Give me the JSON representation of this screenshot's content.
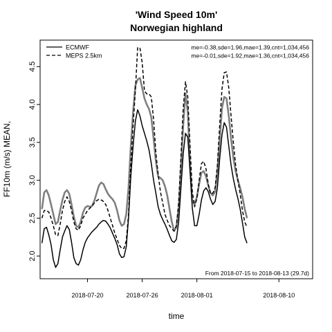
{
  "chart_data": {
    "type": "line",
    "title": "'Wind Speed 10m'",
    "subtitle": "Norwegian highland",
    "xlabel": "time",
    "ylabel": "FF10m (m/s) MEAN,",
    "x_tick_labels": [
      "2018-07-20",
      "2018-07-26",
      "2018-08-01",
      "2018-08-10"
    ],
    "x_tick_days": [
      5,
      11,
      17,
      26
    ],
    "xlim": [
      -0.2,
      29.7
    ],
    "ylim": [
      1.7,
      4.85
    ],
    "y_ticks": [
      2.0,
      2.5,
      3.0,
      3.5,
      4.0,
      4.5
    ],
    "y_tick_labels": [
      "2.0",
      "2.5",
      "3.0",
      "3.5",
      "4.0",
      "4.5"
    ],
    "legend_position": "top-left",
    "stats": [
      "me=-0.38,sde=1.96,mae=1.39,cnt=1,034,456",
      "me=-0.01,sde=1.92,mae=1.36,cnt=1,034,456"
    ],
    "footnote": "From 2018-07-15 to 2018-08-13 (29.7d)",
    "series": [
      {
        "name": "ECMWF",
        "style": "solid",
        "color": "#000000",
        "points": [
          [
            0.0,
            2.17
          ],
          [
            0.25,
            2.36
          ],
          [
            0.5,
            2.38
          ],
          [
            0.75,
            2.28
          ],
          [
            1.0,
            2.15
          ],
          [
            1.25,
            1.95
          ],
          [
            1.5,
            1.85
          ],
          [
            1.75,
            1.9
          ],
          [
            2.0,
            2.08
          ],
          [
            2.25,
            2.25
          ],
          [
            2.5,
            2.33
          ],
          [
            2.75,
            2.4
          ],
          [
            3.0,
            2.35
          ],
          [
            3.25,
            2.18
          ],
          [
            3.5,
            1.98
          ],
          [
            3.75,
            1.9
          ],
          [
            4.0,
            1.88
          ],
          [
            4.25,
            1.95
          ],
          [
            4.5,
            2.08
          ],
          [
            4.75,
            2.18
          ],
          [
            5.0,
            2.24
          ],
          [
            5.25,
            2.28
          ],
          [
            5.5,
            2.32
          ],
          [
            5.75,
            2.35
          ],
          [
            6.0,
            2.38
          ],
          [
            6.25,
            2.42
          ],
          [
            6.5,
            2.45
          ],
          [
            6.75,
            2.47
          ],
          [
            7.0,
            2.46
          ],
          [
            7.25,
            2.42
          ],
          [
            7.5,
            2.37
          ],
          [
            7.75,
            2.3
          ],
          [
            8.0,
            2.23
          ],
          [
            8.25,
            2.15
          ],
          [
            8.5,
            2.03
          ],
          [
            8.75,
            1.98
          ],
          [
            9.0,
            1.99
          ],
          [
            9.25,
            2.12
          ],
          [
            9.5,
            2.5
          ],
          [
            9.75,
            3.05
          ],
          [
            10.0,
            3.45
          ],
          [
            10.25,
            3.78
          ],
          [
            10.5,
            3.93
          ],
          [
            10.75,
            3.85
          ],
          [
            11.0,
            3.72
          ],
          [
            11.25,
            3.62
          ],
          [
            11.5,
            3.52
          ],
          [
            11.75,
            3.4
          ],
          [
            12.0,
            3.22
          ],
          [
            12.25,
            3.0
          ],
          [
            12.5,
            2.83
          ],
          [
            12.75,
            2.65
          ],
          [
            13.0,
            2.55
          ],
          [
            13.25,
            2.48
          ],
          [
            13.5,
            2.42
          ],
          [
            13.75,
            2.35
          ],
          [
            14.0,
            2.27
          ],
          [
            14.25,
            2.2
          ],
          [
            14.5,
            2.18
          ],
          [
            14.75,
            2.22
          ],
          [
            15.0,
            2.45
          ],
          [
            15.25,
            2.9
          ],
          [
            15.5,
            3.35
          ],
          [
            15.75,
            3.62
          ],
          [
            16.0,
            3.57
          ],
          [
            16.25,
            3.12
          ],
          [
            16.5,
            2.63
          ],
          [
            16.75,
            2.4
          ],
          [
            17.0,
            2.4
          ],
          [
            17.25,
            2.55
          ],
          [
            17.5,
            2.74
          ],
          [
            17.75,
            2.86
          ],
          [
            18.0,
            2.9
          ],
          [
            18.25,
            2.85
          ],
          [
            18.5,
            2.75
          ],
          [
            18.75,
            2.68
          ],
          [
            19.0,
            2.72
          ],
          [
            19.25,
            2.9
          ],
          [
            19.5,
            3.28
          ],
          [
            19.75,
            3.6
          ],
          [
            20.0,
            3.76
          ],
          [
            20.25,
            3.7
          ],
          [
            20.5,
            3.45
          ],
          [
            20.75,
            3.2
          ],
          [
            21.0,
            3.02
          ],
          [
            21.25,
            2.88
          ],
          [
            21.5,
            2.76
          ],
          [
            21.75,
            2.62
          ],
          [
            22.0,
            2.44
          ],
          [
            22.25,
            2.25
          ],
          [
            22.5,
            2.17
          ]
        ]
      },
      {
        "name": "MEPS 2.5km",
        "style": "dashed",
        "color": "#000000",
        "points": [
          [
            0.0,
            2.5
          ],
          [
            0.25,
            2.6
          ],
          [
            0.5,
            2.6
          ],
          [
            0.75,
            2.58
          ],
          [
            1.0,
            2.5
          ],
          [
            1.25,
            2.4
          ],
          [
            1.5,
            2.28
          ],
          [
            1.75,
            2.27
          ],
          [
            2.0,
            2.42
          ],
          [
            2.25,
            2.6
          ],
          [
            2.5,
            2.72
          ],
          [
            2.75,
            2.78
          ],
          [
            3.0,
            2.72
          ],
          [
            3.25,
            2.6
          ],
          [
            3.5,
            2.45
          ],
          [
            3.75,
            2.36
          ],
          [
            4.0,
            2.34
          ],
          [
            4.25,
            2.4
          ],
          [
            4.5,
            2.5
          ],
          [
            4.75,
            2.55
          ],
          [
            5.0,
            2.6
          ],
          [
            5.25,
            2.63
          ],
          [
            5.5,
            2.66
          ],
          [
            5.75,
            2.7
          ],
          [
            6.0,
            2.73
          ],
          [
            6.25,
            2.75
          ],
          [
            6.5,
            2.74
          ],
          [
            6.75,
            2.72
          ],
          [
            7.0,
            2.68
          ],
          [
            7.25,
            2.6
          ],
          [
            7.5,
            2.5
          ],
          [
            7.75,
            2.4
          ],
          [
            8.0,
            2.3
          ],
          [
            8.25,
            2.22
          ],
          [
            8.5,
            2.14
          ],
          [
            8.75,
            2.1
          ],
          [
            9.0,
            2.1
          ],
          [
            9.25,
            2.2
          ],
          [
            9.5,
            2.55
          ],
          [
            9.75,
            3.2
          ],
          [
            10.0,
            3.72
          ],
          [
            10.25,
            4.18
          ],
          [
            10.5,
            4.75
          ],
          [
            10.75,
            4.75
          ],
          [
            11.0,
            4.55
          ],
          [
            11.25,
            4.18
          ],
          [
            11.5,
            4.14
          ],
          [
            11.75,
            4.14
          ],
          [
            12.0,
            4.1
          ],
          [
            12.25,
            3.8
          ],
          [
            12.5,
            3.36
          ],
          [
            12.75,
            3.08
          ],
          [
            13.0,
            2.85
          ],
          [
            13.25,
            2.7
          ],
          [
            13.5,
            2.55
          ],
          [
            13.75,
            2.47
          ],
          [
            14.0,
            2.4
          ],
          [
            14.25,
            2.36
          ],
          [
            14.5,
            2.33
          ],
          [
            14.75,
            2.4
          ],
          [
            15.0,
            2.7
          ],
          [
            15.25,
            3.3
          ],
          [
            15.5,
            3.95
          ],
          [
            15.75,
            4.3
          ],
          [
            16.0,
            4.1
          ],
          [
            16.25,
            3.45
          ],
          [
            16.5,
            2.85
          ],
          [
            16.75,
            2.65
          ],
          [
            17.0,
            2.76
          ],
          [
            17.25,
            3.0
          ],
          [
            17.5,
            3.22
          ],
          [
            17.75,
            3.25
          ],
          [
            18.0,
            3.15
          ],
          [
            18.25,
            2.95
          ],
          [
            18.5,
            2.82
          ],
          [
            18.75,
            2.83
          ],
          [
            19.0,
            2.9
          ],
          [
            19.25,
            3.2
          ],
          [
            19.5,
            3.72
          ],
          [
            19.75,
            4.2
          ],
          [
            20.0,
            4.42
          ],
          [
            20.25,
            4.43
          ],
          [
            20.5,
            4.22
          ],
          [
            20.75,
            3.85
          ],
          [
            21.0,
            3.5
          ],
          [
            21.25,
            3.2
          ],
          [
            21.5,
            3.0
          ],
          [
            21.75,
            2.82
          ],
          [
            22.0,
            2.6
          ],
          [
            22.25,
            2.45
          ],
          [
            22.5,
            2.38
          ]
        ]
      },
      {
        "name": "",
        "style": "solid-thick",
        "color": "#7f7f7f",
        "points": [
          [
            0.0,
            2.62
          ],
          [
            0.25,
            2.84
          ],
          [
            0.5,
            2.87
          ],
          [
            0.75,
            2.8
          ],
          [
            1.0,
            2.68
          ],
          [
            1.25,
            2.55
          ],
          [
            1.5,
            2.42
          ],
          [
            1.75,
            2.45
          ],
          [
            2.0,
            2.6
          ],
          [
            2.25,
            2.74
          ],
          [
            2.5,
            2.84
          ],
          [
            2.75,
            2.87
          ],
          [
            3.0,
            2.82
          ],
          [
            3.25,
            2.68
          ],
          [
            3.5,
            2.52
          ],
          [
            3.75,
            2.4
          ],
          [
            4.0,
            2.38
          ],
          [
            4.25,
            2.45
          ],
          [
            4.5,
            2.57
          ],
          [
            4.75,
            2.64
          ],
          [
            5.0,
            2.66
          ],
          [
            5.25,
            2.65
          ],
          [
            5.5,
            2.66
          ],
          [
            5.75,
            2.73
          ],
          [
            6.0,
            2.83
          ],
          [
            6.25,
            2.93
          ],
          [
            6.5,
            2.97
          ],
          [
            6.75,
            2.95
          ],
          [
            7.0,
            2.88
          ],
          [
            7.25,
            2.82
          ],
          [
            7.5,
            2.78
          ],
          [
            7.75,
            2.75
          ],
          [
            8.0,
            2.7
          ],
          [
            8.25,
            2.6
          ],
          [
            8.5,
            2.47
          ],
          [
            8.75,
            2.4
          ],
          [
            9.0,
            2.42
          ],
          [
            9.25,
            2.55
          ],
          [
            9.5,
            2.9
          ],
          [
            9.75,
            3.45
          ],
          [
            10.0,
            3.9
          ],
          [
            10.25,
            4.25
          ],
          [
            10.5,
            4.33
          ],
          [
            10.75,
            4.35
          ],
          [
            11.0,
            4.22
          ],
          [
            11.25,
            4.08
          ],
          [
            11.5,
            4.0
          ],
          [
            11.75,
            3.94
          ],
          [
            12.0,
            3.83
          ],
          [
            12.25,
            3.55
          ],
          [
            12.5,
            3.25
          ],
          [
            12.75,
            3.05
          ],
          [
            13.0,
            3.03
          ],
          [
            13.25,
            3.0
          ],
          [
            13.5,
            2.92
          ],
          [
            13.75,
            2.8
          ],
          [
            14.0,
            2.62
          ],
          [
            14.25,
            2.45
          ],
          [
            14.5,
            2.33
          ],
          [
            14.75,
            2.38
          ],
          [
            15.0,
            2.62
          ],
          [
            15.25,
            3.15
          ],
          [
            15.5,
            3.72
          ],
          [
            15.75,
            4.15
          ],
          [
            16.0,
            3.9
          ],
          [
            16.25,
            3.2
          ],
          [
            16.5,
            2.72
          ],
          [
            16.75,
            2.68
          ],
          [
            17.0,
            2.78
          ],
          [
            17.25,
            2.95
          ],
          [
            17.5,
            3.1
          ],
          [
            17.75,
            3.12
          ],
          [
            18.0,
            3.05
          ],
          [
            18.25,
            2.93
          ],
          [
            18.5,
            2.83
          ],
          [
            18.75,
            2.8
          ],
          [
            19.0,
            2.85
          ],
          [
            19.25,
            3.1
          ],
          [
            19.5,
            3.52
          ],
          [
            19.75,
            3.95
          ],
          [
            20.0,
            4.1
          ],
          [
            20.25,
            4.08
          ],
          [
            20.5,
            3.85
          ],
          [
            20.75,
            3.55
          ],
          [
            21.0,
            3.3
          ],
          [
            21.25,
            3.12
          ],
          [
            21.5,
            3.0
          ],
          [
            21.75,
            2.9
          ],
          [
            22.0,
            2.78
          ],
          [
            22.25,
            2.62
          ],
          [
            22.5,
            2.5
          ]
        ]
      }
    ]
  }
}
